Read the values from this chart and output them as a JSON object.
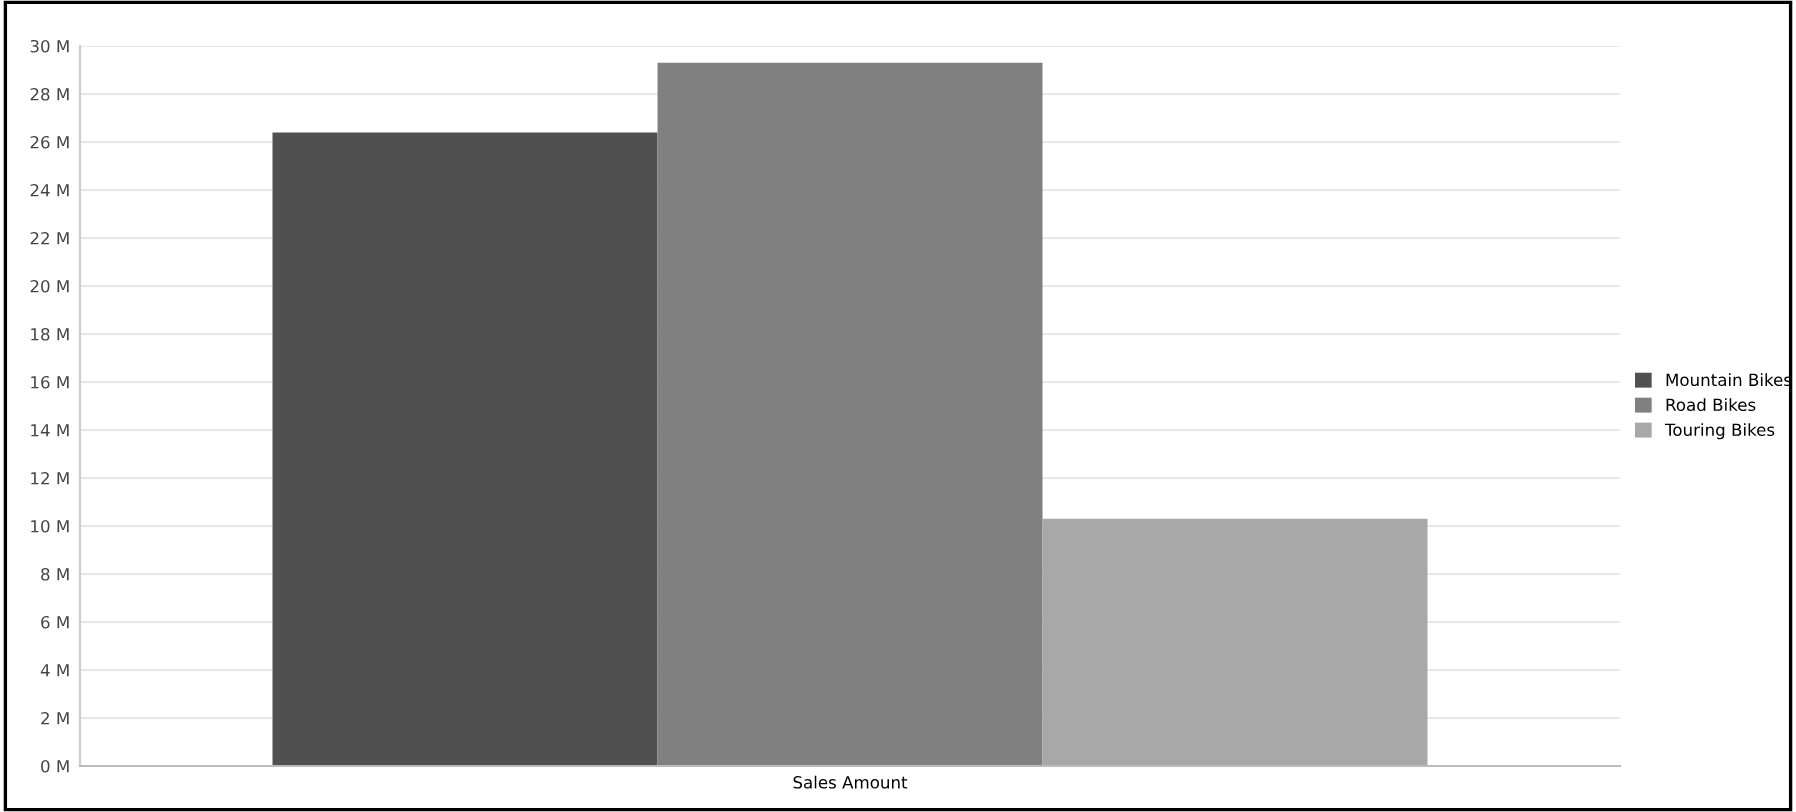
{
  "chart_data": {
    "type": "bar",
    "categories": [
      "Sales Amount"
    ],
    "series": [
      {
        "name": "Mountain Bikes",
        "color": "#505050",
        "values": [
          26.4
        ]
      },
      {
        "name": "Road Bikes",
        "color": "#808080",
        "values": [
          29.3
        ]
      },
      {
        "name": "Touring Bikes",
        "color": "#a8a8a8",
        "values": [
          10.3
        ]
      }
    ],
    "ylim": [
      0,
      30
    ],
    "yticks": [
      {
        "value": 0,
        "label": "0 M"
      },
      {
        "value": 2,
        "label": "2 M"
      },
      {
        "value": 4,
        "label": "4 M"
      },
      {
        "value": 6,
        "label": "6 M"
      },
      {
        "value": 8,
        "label": "8 M"
      },
      {
        "value": 10,
        "label": "10 M"
      },
      {
        "value": 12,
        "label": "12 M"
      },
      {
        "value": 14,
        "label": "14 M"
      },
      {
        "value": 16,
        "label": "16 M"
      },
      {
        "value": 18,
        "label": "18 M"
      },
      {
        "value": 20,
        "label": "20 M"
      },
      {
        "value": 22,
        "label": "22 M"
      },
      {
        "value": 24,
        "label": "24 M"
      },
      {
        "value": 26,
        "label": "26 M"
      },
      {
        "value": 28,
        "label": "28 M"
      },
      {
        "value": 30,
        "label": "30 M"
      }
    ],
    "grid": "y",
    "legend": "right"
  }
}
